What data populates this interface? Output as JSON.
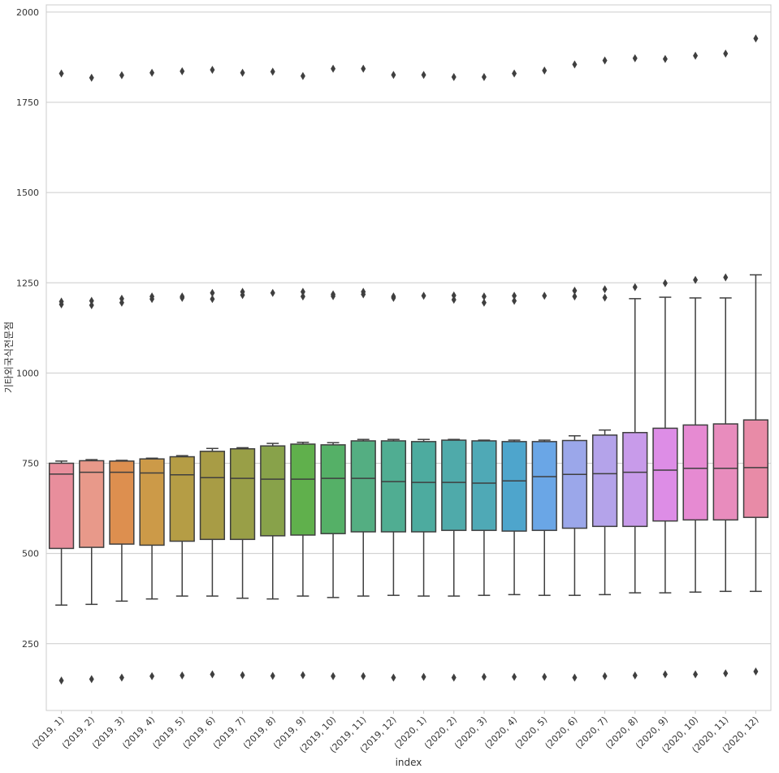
{
  "chart_data": {
    "type": "box",
    "title": "",
    "xlabel": "index",
    "ylabel": "기타외국식전문점",
    "ylim": [
      65,
      2020
    ],
    "yticks": [
      250,
      500,
      750,
      1000,
      1250,
      1500,
      1750,
      2000
    ],
    "ytick_labels": [
      "250",
      "500",
      "750",
      "1000",
      "1250",
      "1500",
      "1750",
      "2000"
    ],
    "grid": "horizontal",
    "categories": [
      "(2019, 1)",
      "(2019, 2)",
      "(2019, 3)",
      "(2019, 4)",
      "(2019, 5)",
      "(2019, 6)",
      "(2019, 7)",
      "(2019, 8)",
      "(2019, 9)",
      "(2019, 10)",
      "(2019, 11)",
      "(2019, 12)",
      "(2020, 1)",
      "(2020, 2)",
      "(2020, 3)",
      "(2020, 4)",
      "(2020, 5)",
      "(2020, 6)",
      "(2020, 7)",
      "(2020, 8)",
      "(2020, 9)",
      "(2020, 10)",
      "(2020, 11)",
      "(2020, 12)"
    ],
    "colors": [
      "#e88e9c",
      "#e8998a",
      "#dd8f4f",
      "#cc9a48",
      "#b59d45",
      "#a89c45",
      "#999f47",
      "#88a24a",
      "#60b04c",
      "#55b067",
      "#54ae82",
      "#50ad92",
      "#4dab9f",
      "#4faaaa",
      "#4fa9b6",
      "#4ea5cc",
      "#6aa6e6",
      "#9ba7ea",
      "#b4a3ea",
      "#c89bea",
      "#dd8de6",
      "#e68ad2",
      "#e88cbd",
      "#e88ba7"
    ],
    "box_q1": [
      514,
      517,
      526,
      523,
      534,
      539,
      539,
      549,
      551,
      555,
      560,
      560,
      560,
      564,
      564,
      562,
      564,
      570,
      575,
      575,
      590,
      593,
      593,
      600
    ],
    "box_median": [
      720,
      725,
      725,
      723,
      718,
      710,
      708,
      706,
      706,
      708,
      708,
      699,
      697,
      697,
      695,
      701,
      713,
      719,
      721,
      725,
      731,
      736,
      736,
      738
    ],
    "box_q3": [
      750,
      757,
      756,
      762,
      768,
      783,
      790,
      798,
      803,
      801,
      812,
      812,
      810,
      814,
      812,
      810,
      810,
      813,
      828,
      835,
      847,
      856,
      859,
      870
    ],
    "whisker_low": [
      357,
      359,
      368,
      374,
      382,
      382,
      376,
      374,
      382,
      378,
      382,
      384,
      382,
      382,
      384,
      386,
      384,
      384,
      386,
      391,
      391,
      393,
      395,
      395
    ],
    "whisker_high": [
      756,
      760,
      758,
      764,
      771,
      791,
      793,
      805,
      808,
      807,
      816,
      816,
      816,
      816,
      814,
      814,
      814,
      826,
      842,
      1206,
      1210,
      1208,
      1208,
      1272
    ],
    "outliers": [
      [
        1830,
        1198,
        1190,
        148
      ],
      [
        1818,
        1200,
        1188,
        152
      ],
      [
        1825,
        1206,
        1195,
        156
      ],
      [
        1832,
        1212,
        1205,
        160
      ],
      [
        1836,
        1212,
        1208,
        162
      ],
      [
        1840,
        1222,
        1205,
        165
      ],
      [
        1832,
        1225,
        1216,
        163
      ],
      [
        1835,
        1222,
        161
      ],
      [
        1823,
        1225,
        1212,
        163
      ],
      [
        1843,
        1218,
        1213,
        160
      ],
      [
        1843,
        1225,
        1218,
        160
      ],
      [
        1826,
        1212,
        1208,
        156
      ],
      [
        1826,
        1214,
        158
      ],
      [
        1820,
        1215,
        1203,
        156
      ],
      [
        1820,
        1212,
        1195,
        158
      ],
      [
        1830,
        1214,
        1200,
        158
      ],
      [
        1838,
        1214,
        158
      ],
      [
        1855,
        1228,
        1212,
        156
      ],
      [
        1866,
        1232,
        1209,
        160
      ],
      [
        1872,
        1238,
        162
      ],
      [
        1870,
        1249,
        165
      ],
      [
        1879,
        1258,
        165
      ],
      [
        1885,
        1265,
        168
      ],
      [
        1927,
        173
      ]
    ]
  }
}
